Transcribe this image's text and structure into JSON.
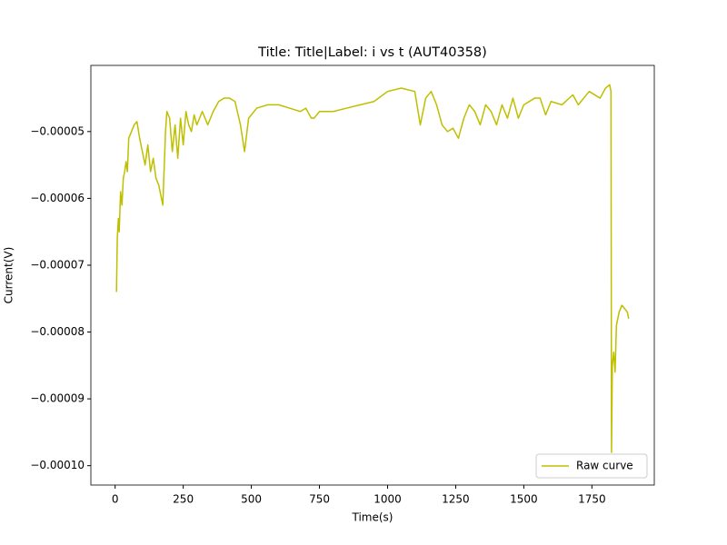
{
  "chart_data": {
    "type": "line",
    "title": "Title: Title|Label: i vs t (AUT40358)",
    "x_label": "Time(s)",
    "y_label": "Current(V)",
    "xlim": [
      -89,
      1979
    ],
    "xticks": [
      0,
      250,
      500,
      750,
      1000,
      1250,
      1500,
      1750
    ],
    "ylim": [
      -0.0001029,
      -4.01e-05
    ],
    "yticks": [
      {
        "value": -0.0001,
        "label": "−0.00010"
      },
      {
        "value": -9e-05,
        "label": "−0.00009"
      },
      {
        "value": -8e-05,
        "label": "−0.00008"
      },
      {
        "value": -7e-05,
        "label": "−0.00007"
      },
      {
        "value": -6e-05,
        "label": "−0.00006"
      },
      {
        "value": -5e-05,
        "label": "−0.00005"
      }
    ],
    "legend": "lower right",
    "x": [
      5,
      8,
      12,
      15,
      20,
      25,
      30,
      35,
      40,
      45,
      50,
      60,
      70,
      80,
      90,
      100,
      110,
      120,
      130,
      140,
      150,
      160,
      170,
      175,
      185,
      190,
      200,
      210,
      220,
      230,
      240,
      250,
      260,
      270,
      280,
      290,
      300,
      320,
      340,
      360,
      380,
      400,
      420,
      440,
      460,
      475,
      490,
      520,
      560,
      600,
      640,
      680,
      700,
      720,
      730,
      750,
      800,
      850,
      900,
      950,
      1000,
      1050,
      1100,
      1120,
      1140,
      1160,
      1180,
      1200,
      1220,
      1240,
      1260,
      1280,
      1300,
      1320,
      1340,
      1360,
      1380,
      1400,
      1420,
      1440,
      1460,
      1480,
      1500,
      1540,
      1560,
      1580,
      1600,
      1640,
      1680,
      1700,
      1740,
      1780,
      1800,
      1815,
      1820,
      1822,
      1825,
      1830,
      1835,
      1840,
      1850,
      1860,
      1870,
      1880,
      1885
    ],
    "series": [
      {
        "name": "Raw curve",
        "color": "#bfbf00",
        "values": [
          -7.4e-05,
          -6.6e-05,
          -6.3e-05,
          -6.5e-05,
          -5.9e-05,
          -6.1e-05,
          -5.7e-05,
          -5.6e-05,
          -5.45e-05,
          -5.6e-05,
          -5.1e-05,
          -5e-05,
          -4.9e-05,
          -4.85e-05,
          -5.1e-05,
          -5.3e-05,
          -5.5e-05,
          -5.2e-05,
          -5.6e-05,
          -5.4e-05,
          -5.7e-05,
          -5.8e-05,
          -6e-05,
          -6.1e-05,
          -5e-05,
          -4.7e-05,
          -4.8e-05,
          -5.3e-05,
          -4.9e-05,
          -5.4e-05,
          -4.8e-05,
          -5.2e-05,
          -4.7e-05,
          -4.9e-05,
          -5e-05,
          -4.75e-05,
          -4.9e-05,
          -4.7e-05,
          -4.9e-05,
          -4.7e-05,
          -4.55e-05,
          -4.5e-05,
          -4.5e-05,
          -4.55e-05,
          -4.9e-05,
          -5.3e-05,
          -4.8e-05,
          -4.65e-05,
          -4.6e-05,
          -4.6e-05,
          -4.65e-05,
          -4.7e-05,
          -4.65e-05,
          -4.8e-05,
          -4.8e-05,
          -4.7e-05,
          -4.7e-05,
          -4.65e-05,
          -4.6e-05,
          -4.55e-05,
          -4.4e-05,
          -4.35e-05,
          -4.4e-05,
          -4.9e-05,
          -4.5e-05,
          -4.4e-05,
          -4.6e-05,
          -4.9e-05,
          -5e-05,
          -4.95e-05,
          -5.1e-05,
          -4.8e-05,
          -4.6e-05,
          -4.7e-05,
          -4.9e-05,
          -4.6e-05,
          -4.7e-05,
          -4.9e-05,
          -4.6e-05,
          -4.8e-05,
          -4.5e-05,
          -4.8e-05,
          -4.6e-05,
          -4.5e-05,
          -4.5e-05,
          -4.75e-05,
          -4.55e-05,
          -4.6e-05,
          -4.45e-05,
          -4.6e-05,
          -4.4e-05,
          -4.5e-05,
          -4.35e-05,
          -4.3e-05,
          -4.4e-05,
          -9.8e-05,
          -8.5e-05,
          -8.3e-05,
          -8.6e-05,
          -7.9e-05,
          -7.7e-05,
          -7.6e-05,
          -7.65e-05,
          -7.7e-05,
          -7.8e-05
        ]
      }
    ]
  }
}
